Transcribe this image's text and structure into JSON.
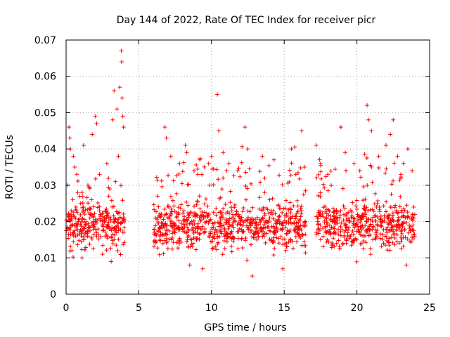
{
  "chart_data": {
    "type": "scatter",
    "title": "Day 144 of 2022, Rate Of TEC Index for receiver picr",
    "xlabel": "GPS time / hours",
    "ylabel": "ROTI / TECUs",
    "xlim": [
      0,
      25
    ],
    "ylim": [
      0,
      0.07
    ],
    "x_ticks": [
      0,
      5,
      10,
      15,
      20,
      25
    ],
    "y_ticks": [
      0,
      0.01,
      0.02,
      0.03,
      0.04,
      0.05,
      0.06,
      0.07
    ],
    "x_tick_labels": [
      "0",
      "5",
      "10",
      "15",
      "20",
      "25"
    ],
    "y_tick_labels": [
      "0",
      "0.01",
      "0.02",
      "0.03",
      "0.04",
      "0.05",
      "0.06",
      "0.07"
    ],
    "grid": true,
    "marker": "+",
    "color": "#ff0000",
    "coverage_hours": [
      [
        0,
        4.0
      ],
      [
        6.0,
        16.5
      ],
      [
        17.2,
        24.0
      ]
    ],
    "series": [
      {
        "name": "ROTI",
        "points": [
          [
            0.1,
            0.03
          ],
          [
            0.2,
            0.046
          ],
          [
            0.25,
            0.043
          ],
          [
            0.3,
            0.04
          ],
          [
            0.5,
            0.038
          ],
          [
            0.6,
            0.035
          ],
          [
            0.8,
            0.028
          ],
          [
            1.0,
            0.025
          ],
          [
            1.2,
            0.041
          ],
          [
            1.5,
            0.03
          ],
          [
            1.8,
            0.044
          ],
          [
            2.0,
            0.049
          ],
          [
            2.1,
            0.047
          ],
          [
            2.3,
            0.033
          ],
          [
            2.8,
            0.036
          ],
          [
            3.0,
            0.029
          ],
          [
            3.2,
            0.048
          ],
          [
            3.3,
            0.056
          ],
          [
            3.5,
            0.051
          ],
          [
            3.7,
            0.057
          ],
          [
            3.8,
            0.067
          ],
          [
            3.82,
            0.064
          ],
          [
            3.85,
            0.054
          ],
          [
            3.9,
            0.049
          ],
          [
            3.95,
            0.046
          ],
          [
            3.6,
            0.038
          ],
          [
            3.4,
            0.031
          ],
          [
            0.4,
            0.012
          ],
          [
            1.1,
            0.01
          ],
          [
            2.5,
            0.011
          ],
          [
            3.1,
            0.009
          ],
          [
            6.3,
            0.027
          ],
          [
            6.8,
            0.046
          ],
          [
            6.9,
            0.043
          ],
          [
            7.2,
            0.038
          ],
          [
            7.8,
            0.036
          ],
          [
            8.2,
            0.041
          ],
          [
            8.3,
            0.039
          ],
          [
            8.5,
            0.008
          ],
          [
            8.8,
            0.034
          ],
          [
            9.2,
            0.037
          ],
          [
            9.4,
            0.007
          ],
          [
            9.8,
            0.036
          ],
          [
            10.0,
            0.038
          ],
          [
            10.4,
            0.055
          ],
          [
            10.5,
            0.045
          ],
          [
            10.8,
            0.039
          ],
          [
            11.2,
            0.036
          ],
          [
            11.8,
            0.034
          ],
          [
            12.3,
            0.046
          ],
          [
            12.5,
            0.04
          ],
          [
            12.8,
            0.005
          ],
          [
            13.5,
            0.038
          ],
          [
            14.0,
            0.026
          ],
          [
            14.3,
            0.037
          ],
          [
            14.9,
            0.007
          ],
          [
            15.5,
            0.04
          ],
          [
            15.8,
            0.033
          ],
          [
            16.2,
            0.045
          ],
          [
            16.4,
            0.035
          ],
          [
            17.2,
            0.041
          ],
          [
            17.5,
            0.036
          ],
          [
            18.0,
            0.033
          ],
          [
            18.6,
            0.014
          ],
          [
            18.9,
            0.046
          ],
          [
            19.2,
            0.039
          ],
          [
            19.8,
            0.036
          ],
          [
            20.2,
            0.034
          ],
          [
            20.7,
            0.052
          ],
          [
            20.8,
            0.048
          ],
          [
            21.0,
            0.045
          ],
          [
            21.5,
            0.038
          ],
          [
            22.0,
            0.041
          ],
          [
            22.3,
            0.044
          ],
          [
            22.5,
            0.048
          ],
          [
            22.8,
            0.038
          ],
          [
            23.2,
            0.036
          ],
          [
            23.5,
            0.04
          ],
          [
            23.8,
            0.034
          ],
          [
            23.4,
            0.008
          ]
        ]
      }
    ]
  }
}
